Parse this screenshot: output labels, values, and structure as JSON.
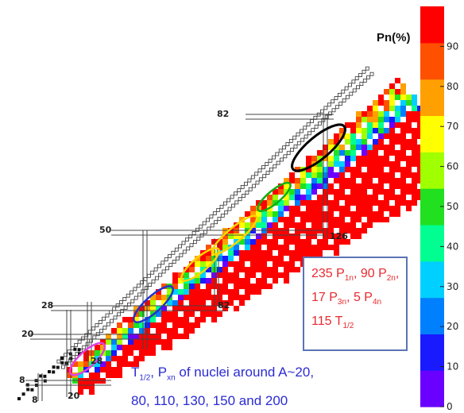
{
  "chart_data": {
    "type": "heatmap",
    "xlabel": "",
    "ylabel": "",
    "colorbar": {
      "title": "Pn(%)",
      "range": [
        0,
        100
      ],
      "ticks": [
        "0",
        "10",
        "20",
        "30",
        "40",
        "50",
        "60",
        "70",
        "80",
        "90"
      ],
      "colors": [
        "#6a00ff",
        "#1a1aff",
        "#0080ff",
        "#00d0ff",
        "#00ff90",
        "#20e020",
        "#a0ff00",
        "#ffff00",
        "#ffa000",
        "#ff5000",
        "#ff0000"
      ]
    },
    "magic_numbers": {
      "proton": [
        "8",
        "20",
        "28",
        "50",
        "82"
      ],
      "neutron": [
        "8",
        "20",
        "28",
        "50",
        "82",
        "126"
      ]
    },
    "highlighted_regions": [
      {
        "mass": 20,
        "color": "#e040e0"
      },
      {
        "mass": 80,
        "color": "#2233cc"
      },
      {
        "mass": 110,
        "color": "#ffd400"
      },
      {
        "mass": 130,
        "color": "#ffd400"
      },
      {
        "mass": 150,
        "color": "#10b010"
      },
      {
        "mass": 200,
        "color": "#000000"
      }
    ],
    "annotation_box": {
      "line1": "235 P",
      "line1_sub": "1n",
      "line1_b": ", 90 P",
      "line1_b_sub": "2n",
      "line1_c": ",",
      "line2": "17 P",
      "line2_sub": "3n",
      "line2_b": ", 5 P",
      "line2_b_sub": "4n",
      "line3": "115 T",
      "line3_sub": "1/2"
    },
    "caption": {
      "t": "T",
      "t_sub": "1/2",
      "sep": ", P",
      "p_sub": "xn",
      "rest1": " of nuclei around A~20,",
      "line2": "80, 110, 130, 150 and 200"
    }
  }
}
